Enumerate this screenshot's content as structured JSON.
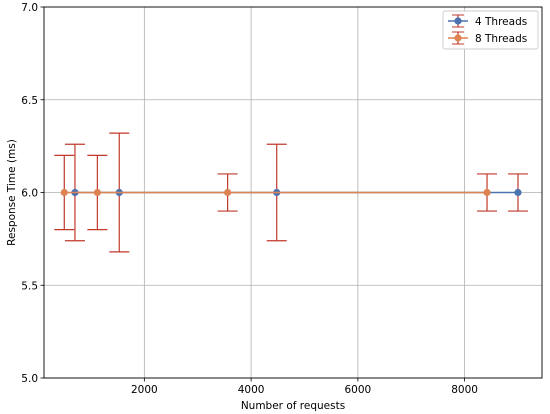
{
  "chart_data": {
    "type": "line",
    "title": "",
    "xlabel": "Number of requests",
    "ylabel": "Response Time (ms)",
    "xlim": [
      120,
      9450
    ],
    "ylim": [
      5.0,
      7.0
    ],
    "xticks": [
      2000,
      4000,
      6000,
      8000
    ],
    "xtick_labels": [
      "2000",
      "4000",
      "6000",
      "8000"
    ],
    "yticks": [
      5.0,
      5.5,
      6.0,
      6.5,
      7.0
    ],
    "ytick_labels": [
      "5.0",
      "5.5",
      "6.0",
      "6.5",
      "7.0"
    ],
    "grid": true,
    "legend_position": "top-right",
    "error_bar_color": "#c0392b",
    "series": [
      {
        "name": "4 Threads",
        "color": "#4c72b0",
        "points": [
          {
            "x": 700,
            "y": 6.0,
            "err": 0.26
          },
          {
            "x": 1530,
            "y": 6.0,
            "err": 0.32
          },
          {
            "x": 4480,
            "y": 6.0,
            "err": 0.26
          },
          {
            "x": 9000,
            "y": 6.0,
            "err": 0.1
          }
        ]
      },
      {
        "name": "8 Threads",
        "color": "#dd8452",
        "points": [
          {
            "x": 500,
            "y": 6.0,
            "err": 0.2
          },
          {
            "x": 1120,
            "y": 6.0,
            "err": 0.2
          },
          {
            "x": 3560,
            "y": 6.0,
            "err": 0.1
          },
          {
            "x": 8420,
            "y": 6.0,
            "err": 0.1
          }
        ]
      }
    ]
  }
}
